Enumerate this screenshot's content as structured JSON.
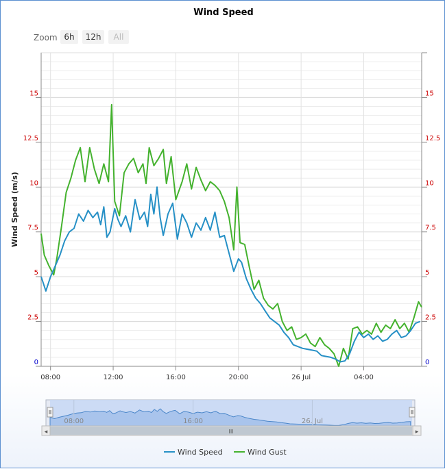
{
  "chart_data": {
    "type": "line",
    "title": "Wind Speed",
    "ylabel": "Wind Speed (m/s)",
    "xlabel": "",
    "ylim": [
      0,
      17.5
    ],
    "yticks": [
      "0",
      "2.5",
      "5",
      "7.5",
      "10",
      "12.5",
      "15"
    ],
    "ytick_values": [
      0,
      2.5,
      5,
      7.5,
      10,
      12.5,
      15
    ],
    "x_unit": "hours since 07:00 on 25 Jul",
    "xlim": [
      0,
      24.3
    ],
    "xticks": [
      {
        "t": 0.6,
        "label": "08:00"
      },
      {
        "t": 4.6,
        "label": "12:00"
      },
      {
        "t": 8.6,
        "label": "16:00"
      },
      {
        "t": 12.6,
        "label": "20:00"
      },
      {
        "t": 16.6,
        "label": "26 Jul"
      },
      {
        "t": 20.6,
        "label": "04:00"
      }
    ],
    "legend_position": "bottom-center",
    "colors": {
      "wind_speed": "#2690c6",
      "wind_gust": "#44b22e",
      "ytick_left": "#cc0000",
      "zero_tick": "#0000cc"
    },
    "series": [
      {
        "name": "Wind Speed",
        "color": "#2690c6",
        "points": [
          [
            0,
            5
          ],
          [
            0.3,
            4.2
          ],
          [
            0.6,
            5
          ],
          [
            0.9,
            5.6
          ],
          [
            1.2,
            6.2
          ],
          [
            1.5,
            7
          ],
          [
            1.8,
            7.5
          ],
          [
            2.1,
            7.7
          ],
          [
            2.4,
            8.5
          ],
          [
            2.7,
            8.1
          ],
          [
            3,
            8.7
          ],
          [
            3.3,
            8.3
          ],
          [
            3.6,
            8.6
          ],
          [
            3.8,
            7.9
          ],
          [
            4,
            8.9
          ],
          [
            4.2,
            7.2
          ],
          [
            4.4,
            7.5
          ],
          [
            4.7,
            8.8
          ],
          [
            4.9,
            8.2
          ],
          [
            5.1,
            7.8
          ],
          [
            5.4,
            8.4
          ],
          [
            5.7,
            7.5
          ],
          [
            6,
            9.3
          ],
          [
            6.3,
            8.2
          ],
          [
            6.6,
            8.6
          ],
          [
            6.8,
            7.8
          ],
          [
            7,
            9.6
          ],
          [
            7.2,
            8.5
          ],
          [
            7.4,
            10
          ],
          [
            7.6,
            8.3
          ],
          [
            7.8,
            7.3
          ],
          [
            8.1,
            8.5
          ],
          [
            8.4,
            9.1
          ],
          [
            8.7,
            7.1
          ],
          [
            9,
            8.5
          ],
          [
            9.3,
            8
          ],
          [
            9.6,
            7.2
          ],
          [
            9.9,
            8
          ],
          [
            10.2,
            7.6
          ],
          [
            10.5,
            8.3
          ],
          [
            10.8,
            7.6
          ],
          [
            11.1,
            8.6
          ],
          [
            11.4,
            7.2
          ],
          [
            11.7,
            7.3
          ],
          [
            12,
            6.3
          ],
          [
            12.3,
            5.3
          ],
          [
            12.6,
            6
          ],
          [
            12.8,
            5.8
          ],
          [
            13.1,
            4.9
          ],
          [
            13.4,
            4.3
          ],
          [
            13.7,
            3.8
          ],
          [
            14,
            3.5
          ],
          [
            14.3,
            3.1
          ],
          [
            14.6,
            2.7
          ],
          [
            14.9,
            2.5
          ],
          [
            15.2,
            2.3
          ],
          [
            15.5,
            1.9
          ],
          [
            15.8,
            1.6
          ],
          [
            16.1,
            1.2
          ],
          [
            16.4,
            1.1
          ],
          [
            16.7,
            1
          ],
          [
            17,
            0.95
          ],
          [
            17.3,
            0.9
          ],
          [
            17.6,
            0.85
          ],
          [
            17.9,
            0.6
          ],
          [
            18.2,
            0.55
          ],
          [
            18.5,
            0.5
          ],
          [
            18.8,
            0.4
          ],
          [
            19.1,
            0.25
          ],
          [
            19.4,
            0.3
          ],
          [
            19.7,
            0.7
          ],
          [
            20,
            1.4
          ],
          [
            20.3,
            1.9
          ],
          [
            20.6,
            1.6
          ],
          [
            20.9,
            1.8
          ],
          [
            21.2,
            1.5
          ],
          [
            21.5,
            1.7
          ],
          [
            21.8,
            1.4
          ],
          [
            22.1,
            1.5
          ],
          [
            22.4,
            1.8
          ],
          [
            22.7,
            2
          ],
          [
            23,
            1.6
          ],
          [
            23.3,
            1.7
          ],
          [
            23.6,
            2
          ],
          [
            23.9,
            2.4
          ],
          [
            24.2,
            2.5
          ]
        ]
      },
      {
        "name": "Wind Gust",
        "color": "#44b22e",
        "points": [
          [
            0,
            7.4
          ],
          [
            0.2,
            6.2
          ],
          [
            0.5,
            5.6
          ],
          [
            0.8,
            5.1
          ],
          [
            1,
            6
          ],
          [
            1.3,
            7.8
          ],
          [
            1.6,
            9.7
          ],
          [
            1.9,
            10.5
          ],
          [
            2.2,
            11.5
          ],
          [
            2.5,
            12.2
          ],
          [
            2.8,
            10.3
          ],
          [
            3.1,
            12.2
          ],
          [
            3.4,
            11
          ],
          [
            3.7,
            10.2
          ],
          [
            4,
            11.3
          ],
          [
            4.3,
            10.3
          ],
          [
            4.5,
            14.6
          ],
          [
            4.7,
            9.2
          ],
          [
            5,
            8.4
          ],
          [
            5.3,
            10.8
          ],
          [
            5.6,
            11.3
          ],
          [
            5.9,
            11.6
          ],
          [
            6.2,
            10.8
          ],
          [
            6.5,
            11.3
          ],
          [
            6.7,
            10.2
          ],
          [
            6.9,
            12.2
          ],
          [
            7.2,
            11.2
          ],
          [
            7.5,
            11.6
          ],
          [
            7.8,
            12.1
          ],
          [
            8,
            10.2
          ],
          [
            8.3,
            11.7
          ],
          [
            8.6,
            9.3
          ],
          [
            9,
            10.3
          ],
          [
            9.3,
            11.3
          ],
          [
            9.6,
            9.9
          ],
          [
            9.9,
            11.1
          ],
          [
            10.2,
            10.4
          ],
          [
            10.5,
            9.8
          ],
          [
            10.8,
            10.3
          ],
          [
            11.1,
            10.1
          ],
          [
            11.4,
            9.8
          ],
          [
            11.7,
            9.2
          ],
          [
            12,
            8.3
          ],
          [
            12.3,
            6.5
          ],
          [
            12.5,
            10
          ],
          [
            12.7,
            6.9
          ],
          [
            13,
            6.8
          ],
          [
            13.3,
            5.5
          ],
          [
            13.6,
            4.3
          ],
          [
            13.9,
            4.8
          ],
          [
            14.2,
            3.8
          ],
          [
            14.5,
            3.4
          ],
          [
            14.8,
            3.2
          ],
          [
            15.1,
            3.5
          ],
          [
            15.4,
            2.5
          ],
          [
            15.7,
            2
          ],
          [
            16,
            2.2
          ],
          [
            16.3,
            1.5
          ],
          [
            16.6,
            1.6
          ],
          [
            16.9,
            1.8
          ],
          [
            17.2,
            1.3
          ],
          [
            17.5,
            1.1
          ],
          [
            17.8,
            1.6
          ],
          [
            18.1,
            1.2
          ],
          [
            18.4,
            1
          ],
          [
            18.7,
            0.7
          ],
          [
            19,
            0
          ],
          [
            19.3,
            1
          ],
          [
            19.6,
            0.4
          ],
          [
            19.9,
            2.1
          ],
          [
            20.2,
            2.2
          ],
          [
            20.5,
            1.8
          ],
          [
            20.8,
            2
          ],
          [
            21.1,
            1.8
          ],
          [
            21.4,
            2.4
          ],
          [
            21.7,
            1.9
          ],
          [
            22,
            2.3
          ],
          [
            22.3,
            2.1
          ],
          [
            22.6,
            2.6
          ],
          [
            22.9,
            2.1
          ],
          [
            23.2,
            2.4
          ],
          [
            23.5,
            1.9
          ],
          [
            23.8,
            2.7
          ],
          [
            24.1,
            3.6
          ],
          [
            24.3,
            3.3
          ]
        ]
      }
    ]
  },
  "zoom": {
    "label": "Zoom",
    "buttons": [
      {
        "label": "6h",
        "enabled": true
      },
      {
        "label": "12h",
        "enabled": true
      },
      {
        "label": "All",
        "enabled": false
      }
    ]
  },
  "navigator": {
    "labels": [
      {
        "t": 1.6,
        "label": "08:00"
      },
      {
        "t": 9.6,
        "label": "16:00"
      },
      {
        "t": 17.6,
        "label": "26. Jul"
      }
    ],
    "scroll_grip": "III",
    "left_arrow": "◂",
    "right_arrow": "▸"
  }
}
